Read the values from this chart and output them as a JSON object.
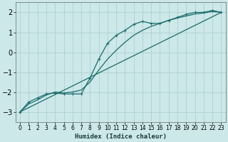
{
  "xlabel": "Humidex (Indice chaleur)",
  "xlim": [
    -0.5,
    23.5
  ],
  "ylim": [
    -3.5,
    2.5
  ],
  "yticks": [
    -3,
    -2,
    -1,
    0,
    1,
    2
  ],
  "xticks": [
    0,
    1,
    2,
    3,
    4,
    5,
    6,
    7,
    8,
    9,
    10,
    11,
    12,
    13,
    14,
    15,
    16,
    17,
    18,
    19,
    20,
    21,
    22,
    23
  ],
  "bg_color": "#cce8e8",
  "grid_color": "#aacccc",
  "line_color": "#1a6b6b",
  "straight_line_x": [
    0,
    23
  ],
  "straight_line_y": [
    -3.0,
    2.0
  ],
  "data_line_x": [
    0,
    1,
    2,
    3,
    4,
    5,
    6,
    7,
    8,
    9,
    10,
    11,
    12,
    13,
    14,
    15,
    16,
    17,
    18,
    19,
    20,
    21,
    22,
    23
  ],
  "data_line_y": [
    -3.0,
    -2.5,
    -2.3,
    -2.1,
    -2.05,
    -2.1,
    -2.1,
    -2.1,
    -1.3,
    -0.35,
    0.45,
    0.85,
    1.1,
    1.4,
    1.55,
    1.45,
    1.45,
    1.6,
    1.75,
    1.9,
    2.0,
    2.0,
    2.1,
    2.0
  ],
  "smooth_line_x": [
    0,
    1,
    2,
    3,
    4,
    5,
    6,
    7,
    8,
    9,
    10,
    11,
    12,
    13,
    14,
    15,
    16,
    17,
    18,
    19,
    20,
    21,
    22,
    23
  ],
  "smooth_line_y": [
    -3.0,
    -2.6,
    -2.4,
    -2.15,
    -2.0,
    -2.05,
    -2.0,
    -1.9,
    -1.5,
    -0.9,
    -0.35,
    0.1,
    0.5,
    0.85,
    1.1,
    1.3,
    1.45,
    1.6,
    1.72,
    1.82,
    1.92,
    1.97,
    2.05,
    2.0
  ]
}
